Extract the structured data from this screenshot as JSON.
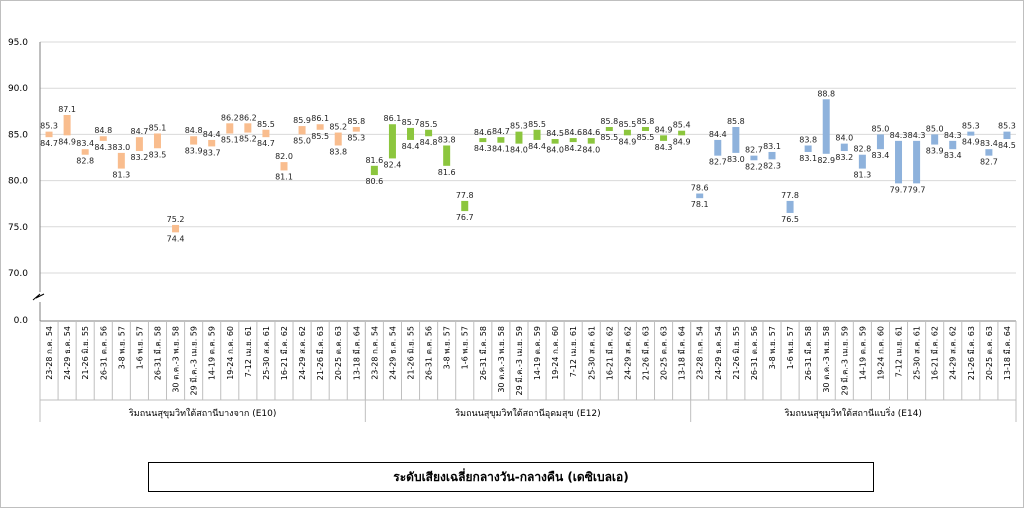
{
  "chart_data": {
    "type": "bar",
    "subtype": "floating-range",
    "title": "ระดับเสียงเฉลี่ยกลางวัน-กลางคืน (เดซิเบลเอ)",
    "ylim": [
      70,
      95
    ],
    "yticks": [
      "95.0",
      "90.0",
      "85.0",
      "80.0",
      "75.0",
      "70.0",
      "0.0"
    ],
    "axis_break": true,
    "grid": "horizontal",
    "series": [
      {
        "name": "ริมถนนสุขุมวิทใต้สถานีบางจาก (E10)",
        "color": "#f9bd8e",
        "categories": [
          "23-28 ก.ค. 54",
          "24-29 ธ.ค. 54",
          "21-26 มิ.ย. 55",
          "26-31 ต.ค. 56",
          "3-8 พ.ย. 57",
          "1-6 พ.ย. 57",
          "26-31 มี.ค. 58",
          "30 ต.ค.-3 พ.ย. 58",
          "29 มี.ค.-3 เม.ย. 59",
          "14-19 ต.ค. 59",
          "19-24 ก.ค. 60",
          "7-12 เม.ย. 61",
          "25-30 ส.ค. 61",
          "16-21 มี.ค. 62",
          "24-29 ส.ค. 62",
          "21-26 มี.ค. 63",
          "20-25 ต.ค. 63",
          "13-18 มี.ค. 64"
        ],
        "day": [
          85.3,
          87.1,
          83.4,
          84.8,
          83.0,
          84.7,
          85.1,
          75.2,
          84.8,
          84.4,
          86.2,
          86.2,
          85.5,
          82.0,
          85.9,
          86.1,
          85.2,
          85.8
        ],
        "night": [
          84.7,
          84.9,
          82.8,
          84.3,
          81.3,
          83.2,
          83.5,
          74.4,
          83.9,
          83.7,
          85.1,
          85.2,
          84.7,
          81.1,
          85.0,
          85.5,
          83.8,
          85.3
        ]
      },
      {
        "name": "ริมถนนสุขุมวิทใต้สถานีอุดมสุข (E12)",
        "color": "#8cc63e",
        "categories": [
          "23-28 ก.ค. 54",
          "24-29 ธ.ค. 54",
          "21-26 มิ.ย. 55",
          "26-31 ต.ค. 56",
          "3-8 พ.ย. 57",
          "1-6 พ.ย. 57",
          "26-31 มี.ค. 58",
          "30 ต.ค.-3 พ.ย. 58",
          "29 มี.ค.-3 เม.ย. 59",
          "14-19 ต.ค. 59",
          "19-24 ก.ค. 60",
          "7-12 เม.ย. 61",
          "25-30 ส.ค. 61",
          "16-21 มี.ค. 62",
          "24-29 ส.ค. 62",
          "21-26 มี.ค. 63",
          "20-25 ต.ค. 63",
          "13-18 มี.ค. 64"
        ],
        "day": [
          81.6,
          86.1,
          85.7,
          85.5,
          83.8,
          77.8,
          84.6,
          84.7,
          85.3,
          85.5,
          84.5,
          84.6,
          84.6,
          85.8,
          85.5,
          85.8,
          84.9,
          85.4
        ],
        "night": [
          80.6,
          82.4,
          84.4,
          84.8,
          81.6,
          76.7,
          84.3,
          84.1,
          84.0,
          84.4,
          84.0,
          84.2,
          84.0,
          85.5,
          84.9,
          85.5,
          84.3,
          84.9
        ]
      },
      {
        "name": "ริมถนนสุขุมวิทใต้สถานีแบริ่ง (E14)",
        "color": "#8eb2dc",
        "categories": [
          "23-28 ก.ค. 54",
          "24-29 ธ.ค. 54",
          "21-26 มิ.ย. 55",
          "26-31 ต.ค. 56",
          "3-8 พ.ย. 57",
          "1-6 พ.ย. 57",
          "26-31 มี.ค. 58",
          "30 ต.ค.-3 พ.ย. 58",
          "29 มี.ค.-3 เม.ย. 59",
          "14-19 ต.ค. 59",
          "19-24 ก.ค. 60",
          "7-12 เม.ย. 61",
          "25-30 ส.ค. 61",
          "16-21 มี.ค. 62",
          "24-29 ส.ค. 62",
          "21-26 มี.ค. 63",
          "20-25 ต.ค. 63",
          "13-18 มี.ค. 64"
        ],
        "day": [
          78.6,
          84.4,
          85.8,
          82.7,
          83.1,
          77.8,
          83.8,
          88.8,
          84.0,
          82.8,
          85.0,
          84.3,
          84.3,
          85.0,
          84.3,
          85.3,
          83.4,
          85.3
        ],
        "night": [
          78.1,
          82.7,
          83.0,
          82.2,
          82.3,
          76.5,
          83.1,
          82.9,
          83.2,
          81.3,
          83.4,
          79.7,
          79.7,
          83.9,
          83.4,
          84.9,
          82.7,
          84.5
        ]
      }
    ]
  }
}
